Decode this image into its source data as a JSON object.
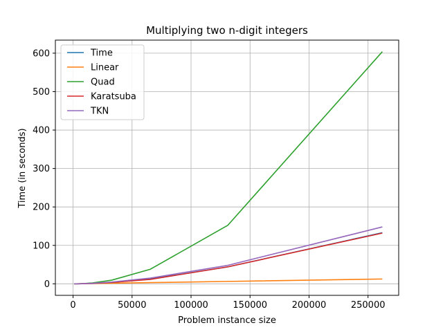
{
  "chart_data": {
    "type": "line",
    "title": "Multiplying two n-digit integers",
    "xlabel": "Problem instance size",
    "ylabel": "Time (in seconds)",
    "xlim": [
      -15000,
      276000
    ],
    "ylim": [
      -30,
      634
    ],
    "xticks": [
      0,
      50000,
      100000,
      150000,
      200000,
      250000
    ],
    "yticks": [
      0,
      100,
      200,
      300,
      400,
      500,
      600
    ],
    "grid": true,
    "legend_position": "top-left",
    "x": [
      1024,
      2048,
      4096,
      8192,
      16384,
      32768,
      65536,
      131072,
      262144
    ],
    "series": [
      {
        "name": "Time",
        "color": "#1f77b4",
        "values": [
          0,
          0,
          0.1,
          0.3,
          1.0,
          3.5,
          12.5,
          44,
          133
        ]
      },
      {
        "name": "Linear",
        "color": "#ff7f0e",
        "values": [
          0,
          0,
          0.2,
          0.4,
          0.8,
          1.6,
          3.1,
          6.2,
          12.5
        ]
      },
      {
        "name": "Quad",
        "color": "#2ca02c",
        "values": [
          0,
          0,
          0.1,
          0.6,
          2.4,
          9.5,
          38,
          152,
          604
        ]
      },
      {
        "name": "Karatsuba",
        "color": "#d62728",
        "values": [
          0,
          0,
          0.1,
          0.3,
          0.9,
          3.5,
          11.5,
          44,
          132
        ]
      },
      {
        "name": "TKN",
        "color": "#9467bd",
        "values": [
          0,
          0,
          0.1,
          0.4,
          1.3,
          4.5,
          15,
          48,
          148
        ]
      }
    ]
  }
}
